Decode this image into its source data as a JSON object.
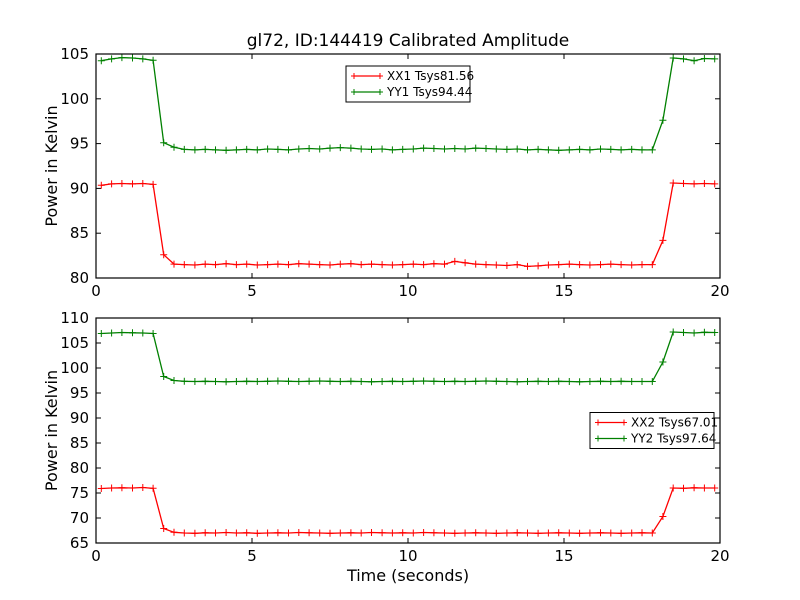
{
  "figure": {
    "title": "gl72, ID:144419 Calibrated Amplitude",
    "background_color": "#ffffff",
    "axis_color": "#000000"
  },
  "chart_data": [
    {
      "type": "line",
      "title": "gl72, ID:144419 Calibrated Amplitude",
      "ylabel": "Power in Kelvin",
      "xlabel": "",
      "xlim": [
        0,
        20
      ],
      "ylim": [
        80,
        105
      ],
      "xticks": [
        0,
        5,
        10,
        15,
        20
      ],
      "yticks": [
        80,
        85,
        90,
        95,
        100,
        105
      ],
      "grid": false,
      "legend_position": "upper center",
      "x": [
        0.17,
        0.5,
        0.83,
        1.17,
        1.5,
        1.83,
        2.17,
        2.5,
        2.83,
        3.17,
        3.5,
        3.83,
        4.17,
        4.5,
        4.83,
        5.17,
        5.5,
        5.83,
        6.17,
        6.5,
        6.83,
        7.17,
        7.5,
        7.83,
        8.17,
        8.5,
        8.83,
        9.17,
        9.5,
        9.83,
        10.17,
        10.5,
        10.83,
        11.17,
        11.5,
        11.83,
        12.17,
        12.5,
        12.83,
        13.17,
        13.5,
        13.83,
        14.17,
        14.5,
        14.83,
        15.17,
        15.5,
        15.83,
        16.17,
        16.5,
        16.83,
        17.17,
        17.5,
        17.83,
        18.17,
        18.5,
        18.83,
        19.17,
        19.5,
        19.83
      ],
      "series": [
        {
          "name": "XX1 Tsys81.56",
          "color": "#ff0000",
          "marker": "plus",
          "values": [
            90.35,
            90.5,
            90.55,
            90.5,
            90.55,
            90.45,
            82.6,
            81.55,
            81.5,
            81.45,
            81.55,
            81.5,
            81.6,
            81.5,
            81.55,
            81.45,
            81.5,
            81.55,
            81.5,
            81.6,
            81.55,
            81.5,
            81.45,
            81.55,
            81.6,
            81.5,
            81.55,
            81.5,
            81.45,
            81.5,
            81.55,
            81.5,
            81.6,
            81.55,
            81.85,
            81.7,
            81.55,
            81.5,
            81.45,
            81.4,
            81.5,
            81.3,
            81.35,
            81.45,
            81.5,
            81.55,
            81.5,
            81.45,
            81.5,
            81.55,
            81.5,
            81.45,
            81.5,
            81.5,
            84.2,
            90.6,
            90.55,
            90.5,
            90.55,
            90.5
          ]
        },
        {
          "name": "YY1 Tsys94.44",
          "color": "#008000",
          "marker": "plus",
          "values": [
            104.25,
            104.45,
            104.6,
            104.55,
            104.45,
            104.3,
            95.1,
            94.6,
            94.35,
            94.3,
            94.35,
            94.3,
            94.25,
            94.3,
            94.35,
            94.3,
            94.4,
            94.35,
            94.3,
            94.4,
            94.45,
            94.4,
            94.5,
            94.55,
            94.5,
            94.4,
            94.35,
            94.4,
            94.3,
            94.35,
            94.4,
            94.5,
            94.45,
            94.4,
            94.45,
            94.4,
            94.5,
            94.45,
            94.4,
            94.35,
            94.4,
            94.3,
            94.35,
            94.3,
            94.25,
            94.3,
            94.35,
            94.3,
            94.4,
            94.35,
            94.3,
            94.35,
            94.3,
            94.3,
            97.6,
            104.55,
            104.45,
            104.25,
            104.5,
            104.45
          ]
        }
      ]
    },
    {
      "type": "line",
      "title": "",
      "ylabel": "Power in Kelvin",
      "xlabel": "Time (seconds)",
      "xlim": [
        0,
        20
      ],
      "ylim": [
        65,
        110
      ],
      "xticks": [
        0,
        5,
        10,
        15,
        20
      ],
      "yticks": [
        65,
        70,
        75,
        80,
        85,
        90,
        95,
        100,
        105,
        110
      ],
      "grid": false,
      "legend_position": "center right",
      "x": [
        0.17,
        0.5,
        0.83,
        1.17,
        1.5,
        1.83,
        2.17,
        2.5,
        2.83,
        3.17,
        3.5,
        3.83,
        4.17,
        4.5,
        4.83,
        5.17,
        5.5,
        5.83,
        6.17,
        6.5,
        6.83,
        7.17,
        7.5,
        7.83,
        8.17,
        8.5,
        8.83,
        9.17,
        9.5,
        9.83,
        10.17,
        10.5,
        10.83,
        11.17,
        11.5,
        11.83,
        12.17,
        12.5,
        12.83,
        13.17,
        13.5,
        13.83,
        14.17,
        14.5,
        14.83,
        15.17,
        15.5,
        15.83,
        16.17,
        16.5,
        16.83,
        17.17,
        17.5,
        17.83,
        18.17,
        18.5,
        18.83,
        19.17,
        19.5,
        19.83
      ],
      "series": [
        {
          "name": "XX2 Tsys67.01",
          "color": "#ff0000",
          "marker": "plus",
          "values": [
            75.9,
            76.0,
            76.05,
            76.0,
            76.1,
            75.95,
            67.9,
            67.15,
            67.0,
            66.95,
            67.05,
            67.0,
            67.1,
            67.0,
            67.05,
            66.95,
            67.0,
            67.05,
            67.0,
            67.1,
            67.05,
            67.0,
            66.95,
            67.0,
            67.05,
            67.0,
            67.1,
            67.05,
            67.0,
            67.05,
            67.0,
            67.1,
            67.05,
            67.0,
            66.95,
            67.0,
            67.05,
            67.0,
            66.95,
            67.0,
            67.05,
            67.0,
            66.95,
            67.0,
            67.05,
            67.0,
            66.95,
            67.0,
            67.05,
            67.0,
            66.95,
            67.0,
            67.05,
            67.0,
            70.3,
            76.0,
            75.95,
            76.05,
            76.0,
            76.0
          ]
        },
        {
          "name": "YY2 Tsys97.64",
          "color": "#008000",
          "marker": "plus",
          "values": [
            106.9,
            107.0,
            107.1,
            107.05,
            107.0,
            106.9,
            98.3,
            97.5,
            97.35,
            97.3,
            97.35,
            97.3,
            97.25,
            97.3,
            97.35,
            97.3,
            97.35,
            97.4,
            97.35,
            97.3,
            97.35,
            97.4,
            97.35,
            97.3,
            97.35,
            97.3,
            97.25,
            97.3,
            97.35,
            97.3,
            97.35,
            97.4,
            97.35,
            97.3,
            97.35,
            97.3,
            97.35,
            97.4,
            97.35,
            97.3,
            97.25,
            97.3,
            97.35,
            97.3,
            97.35,
            97.3,
            97.25,
            97.3,
            97.35,
            97.3,
            97.35,
            97.3,
            97.3,
            97.3,
            101.2,
            107.2,
            107.1,
            107.0,
            107.15,
            107.1
          ]
        }
      ]
    }
  ]
}
